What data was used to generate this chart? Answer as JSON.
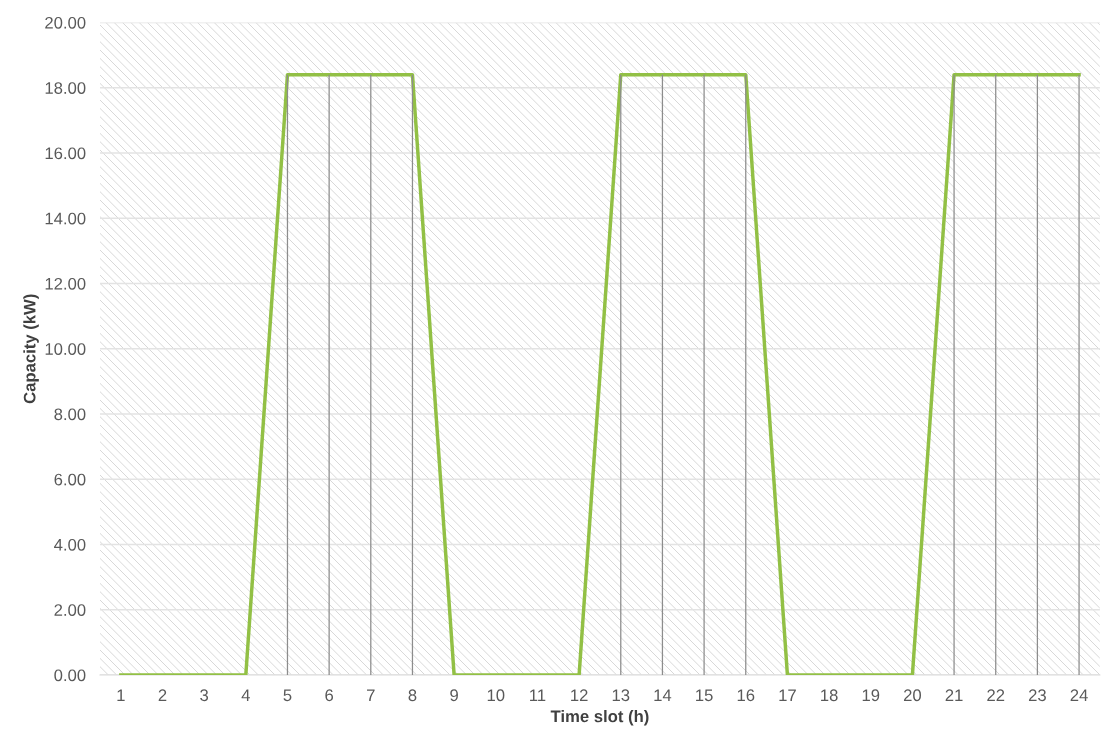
{
  "chart_data": {
    "type": "line",
    "xlabel": "Time slot (h)",
    "ylabel": "Capacity (kW)",
    "categories": [
      "1",
      "2",
      "3",
      "4",
      "5",
      "6",
      "7",
      "8",
      "9",
      "10",
      "11",
      "12",
      "13",
      "14",
      "15",
      "16",
      "17",
      "18",
      "19",
      "20",
      "21",
      "22",
      "23",
      "24"
    ],
    "series": [
      {
        "color": "#92c045",
        "values": [
          0,
          0,
          0,
          0,
          18.4,
          18.4,
          18.4,
          18.4,
          0,
          0,
          0,
          0,
          18.4,
          18.4,
          18.4,
          18.4,
          0,
          0,
          0,
          0,
          18.4,
          18.4,
          18.4,
          18.4
        ]
      },
      {
        "type": "bar",
        "color": "#8c8c8c",
        "values": [
          null,
          null,
          null,
          null,
          18.4,
          18.4,
          18.4,
          18.4,
          null,
          null,
          null,
          null,
          18.4,
          18.4,
          18.4,
          18.4,
          null,
          null,
          null,
          null,
          18.4,
          18.4,
          18.4,
          18.4
        ]
      }
    ],
    "ylim": [
      0,
      20
    ],
    "yticks": [
      {
        "value": 0,
        "label": "0.00"
      },
      {
        "value": 2,
        "label": "2.00"
      },
      {
        "value": 4,
        "label": "4.00"
      },
      {
        "value": 6,
        "label": "6.00"
      },
      {
        "value": 8,
        "label": "8.00"
      },
      {
        "value": 10,
        "label": "10.00"
      },
      {
        "value": 12,
        "label": "12.00"
      },
      {
        "value": 14,
        "label": "14.00"
      },
      {
        "value": 16,
        "label": "16.00"
      },
      {
        "value": 18,
        "label": "18.00"
      },
      {
        "value": 20,
        "label": "20.00"
      }
    ],
    "grid": "y",
    "marker": "none",
    "line_style": "solid",
    "legend": false
  }
}
